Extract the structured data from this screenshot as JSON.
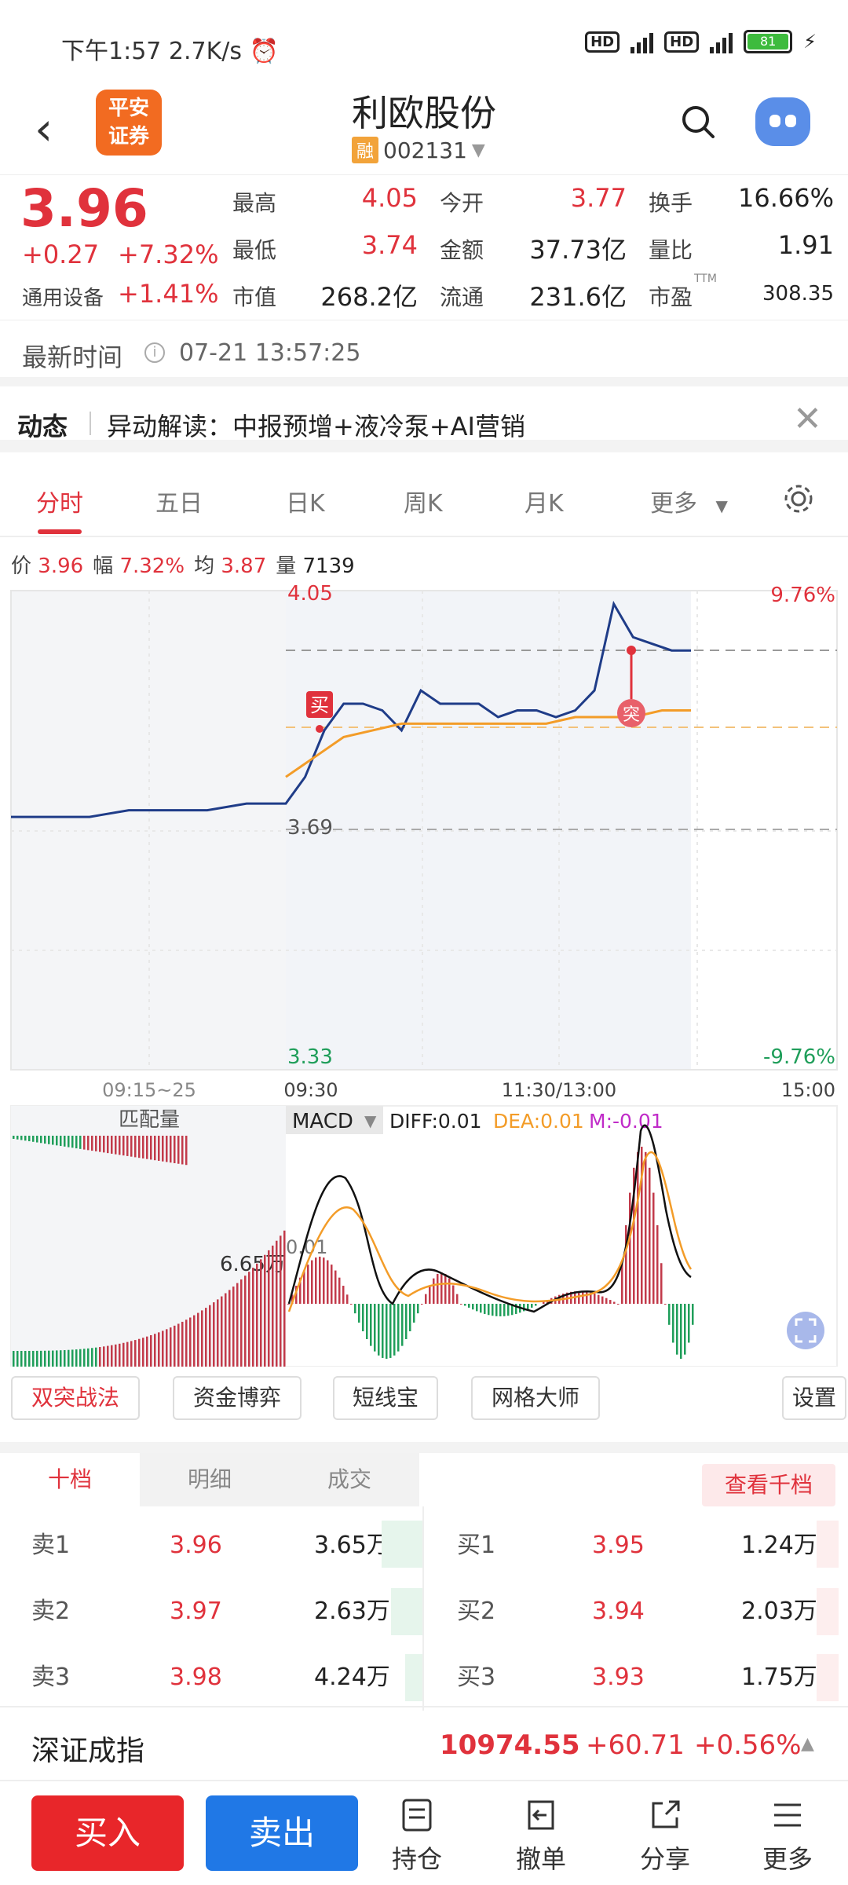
{
  "status": {
    "time": "下午1:57",
    "speed": "2.7K/s",
    "battery": "81",
    "hd": "HD",
    "net": "4G"
  },
  "header": {
    "name": "利欧股份",
    "code": "002131",
    "rong": "融",
    "logo_line1": "平安",
    "logo_line2": "证券"
  },
  "quote": {
    "price": "3.96",
    "change": "+0.27",
    "change_pct": "+7.32%",
    "sector": "通用设备",
    "sector_pct": "+1.41%",
    "high_l": "最高",
    "high": "4.05",
    "low_l": "最低",
    "low": "3.74",
    "mcap_l": "市值",
    "mcap": "268.2亿",
    "open_l": "今开",
    "open": "3.77",
    "amount_l": "金额",
    "amount": "37.73亿",
    "float_l": "流通",
    "float": "231.6亿",
    "turn_l": "换手",
    "turn": "16.66%",
    "vr_l": "量比",
    "vr": "1.91",
    "pe_l": "市盈",
    "pe_sup": "TTM",
    "pe": "308.35"
  },
  "newtime": {
    "label": "最新时间",
    "info": "i",
    "value": "07-21 13:57:25"
  },
  "dynamic": {
    "label": "动态",
    "text": "异动解读：中报预增+液冷泵+AI营销"
  },
  "tabs": [
    "分时",
    "五日",
    "日K",
    "周K",
    "月K",
    "更多"
  ],
  "pinfo": {
    "price_l": "价",
    "price": "3.96",
    "amp_l": "幅",
    "amp": "7.32%",
    "avg_l": "均",
    "avg": "3.87",
    "vol_l": "量",
    "vol": "7139"
  },
  "chart_data": {
    "type": "line",
    "y_top": "4.05",
    "y_mid": "3.69",
    "y_bottom": "3.33",
    "pct_top": "9.76%",
    "pct_bottom": "-9.76%",
    "x_labels": [
      "09:15~25",
      "09:30",
      "11:30/13:00",
      "15:00"
    ],
    "ylim": [
      3.33,
      4.05
    ],
    "series": [
      {
        "values": [
          3.71,
          3.71,
          3.71,
          3.72,
          3.72,
          3.72,
          3.73,
          3.73,
          3.77,
          3.84,
          3.88,
          3.88,
          3.87,
          3.84,
          3.9,
          3.88,
          3.88,
          3.88,
          3.86,
          3.87,
          3.87,
          3.86,
          3.87,
          3.9,
          4.03,
          3.98,
          3.97,
          3.96,
          3.96
        ]
      },
      {
        "values": [
          3.77,
          3.8,
          3.83,
          3.84,
          3.85,
          3.85,
          3.85,
          3.85,
          3.85,
          3.85,
          3.86,
          3.86,
          3.86,
          3.87,
          3.87
        ]
      }
    ],
    "macd": {
      "label": "MACD",
      "diff": "DIFF:0.01",
      "dea": "DEA:0.01",
      "m": "M:-0.01"
    },
    "auction_label": "匹配量",
    "auction_value": "6.65万",
    "macd_zero": "0.01",
    "buy_marker": "买",
    "break_marker": "突"
  },
  "strategies": [
    "双突战法",
    "资金博弈",
    "短线宝",
    "网格大师",
    "设置"
  ],
  "book": {
    "tabs": [
      "十档",
      "明细",
      "成交"
    ],
    "more": "查看千档",
    "asks": [
      {
        "l": "卖1",
        "p": "3.96",
        "v": "3.65万"
      },
      {
        "l": "卖2",
        "p": "3.97",
        "v": "2.63万"
      },
      {
        "l": "卖3",
        "p": "3.98",
        "v": "4.24万"
      }
    ],
    "bids": [
      {
        "l": "买1",
        "p": "3.95",
        "v": "1.24万"
      },
      {
        "l": "买2",
        "p": "3.94",
        "v": "2.03万"
      },
      {
        "l": "买3",
        "p": "3.93",
        "v": "1.75万"
      }
    ]
  },
  "index": {
    "name": "深证成指",
    "value": "10974.55",
    "change": "+60.71",
    "pct": "+0.56%"
  },
  "bottom": {
    "buy": "买入",
    "sell": "卖出",
    "hold": "持仓",
    "cancel": "撤单",
    "share": "分享",
    "more": "更多"
  }
}
